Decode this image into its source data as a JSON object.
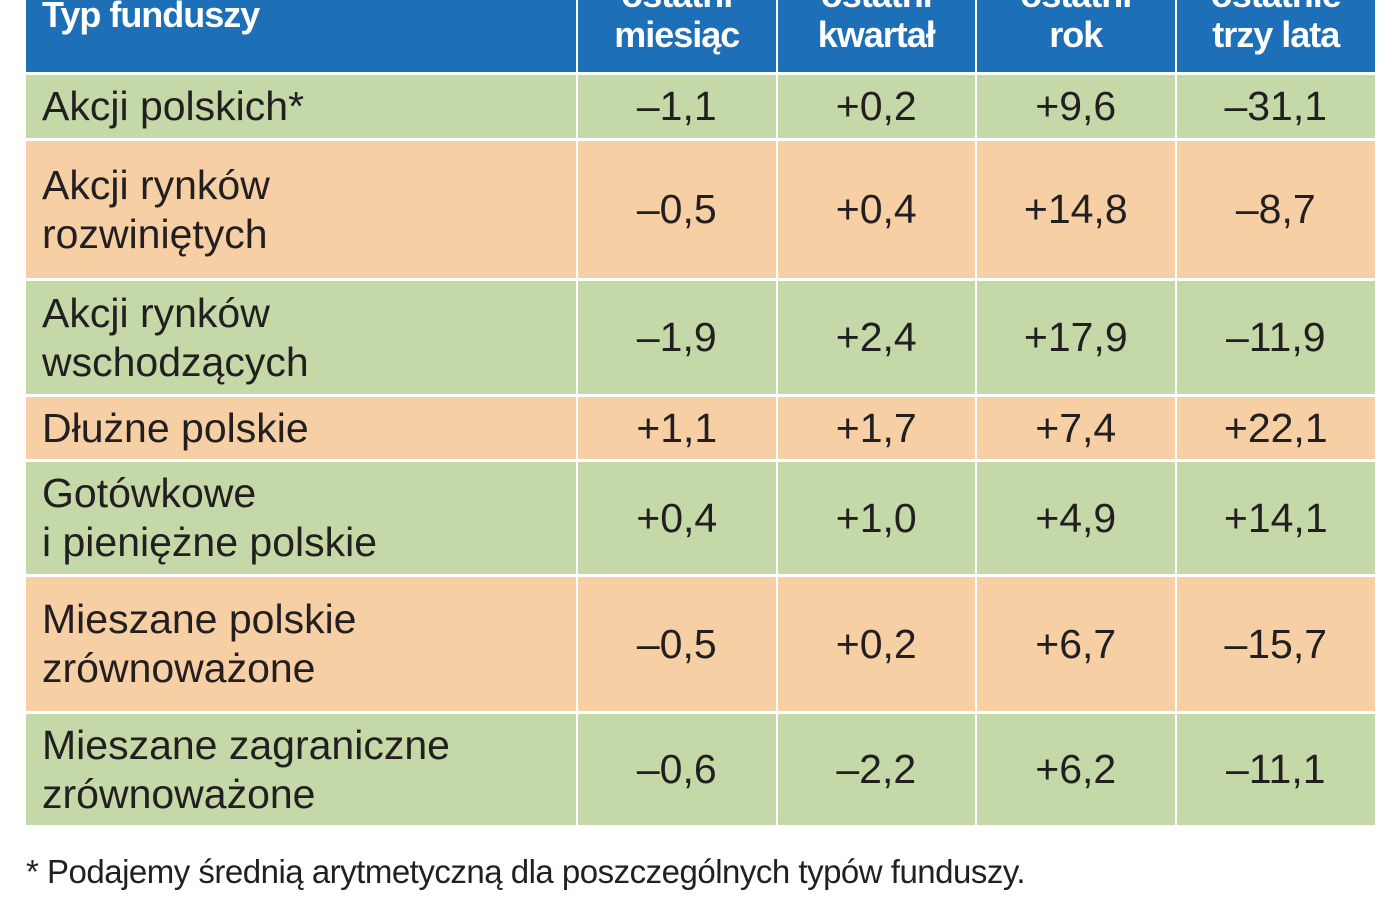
{
  "header": {
    "col0": "Typ funduszy",
    "col1_l1": "ostatni",
    "col1_l2": "miesiąc",
    "col2_l1": "ostatni",
    "col2_l2": "kwartał",
    "col3_l1": "ostatni",
    "col3_l2": "rok",
    "col4_l1": "ostatnie",
    "col4_l2": "trzy lata"
  },
  "rows": [
    {
      "label_l1": "Akcji polskich*",
      "label_l2": "",
      "v1": "–1,1",
      "v2": "+0,2",
      "v3": "+9,6",
      "v4": "–31,1"
    },
    {
      "label_l1": "Akcji rynków",
      "label_l2": "rozwiniętych",
      "v1": "–0,5",
      "v2": "+0,4",
      "v3": "+14,8",
      "v4": "–8,7"
    },
    {
      "label_l1": "Akcji rynków",
      "label_l2": "wschodzących",
      "v1": "–1,9",
      "v2": "+2,4",
      "v3": "+17,9",
      "v4": "–11,9"
    },
    {
      "label_l1": "Dłużne polskie",
      "label_l2": "",
      "v1": "+1,1",
      "v2": "+1,7",
      "v3": "+7,4",
      "v4": "+22,1"
    },
    {
      "label_l1": "Gotówkowe",
      "label_l2": "i pieniężne polskie",
      "v1": "+0,4",
      "v2": "+1,0",
      "v3": "+4,9",
      "v4": "+14,1"
    },
    {
      "label_l1": "Mieszane polskie",
      "label_l2": "zrównoważone",
      "v1": "–0,5",
      "v2": "+0,2",
      "v3": "+6,7",
      "v4": "–15,7"
    },
    {
      "label_l1": "Mieszane zagraniczne",
      "label_l2": "zrównoważone",
      "v1": "–0,6",
      "v2": "–2,2",
      "v3": "+6,2",
      "v4": "–11,1"
    }
  ],
  "footnote": "* Podajemy średnią arytmetyczną dla poszczególnych typów funduszy.",
  "colors": {
    "header_bg": "#1d6fb8",
    "row_green": "#c4d9a7",
    "row_orange": "#f6cfa5"
  }
}
